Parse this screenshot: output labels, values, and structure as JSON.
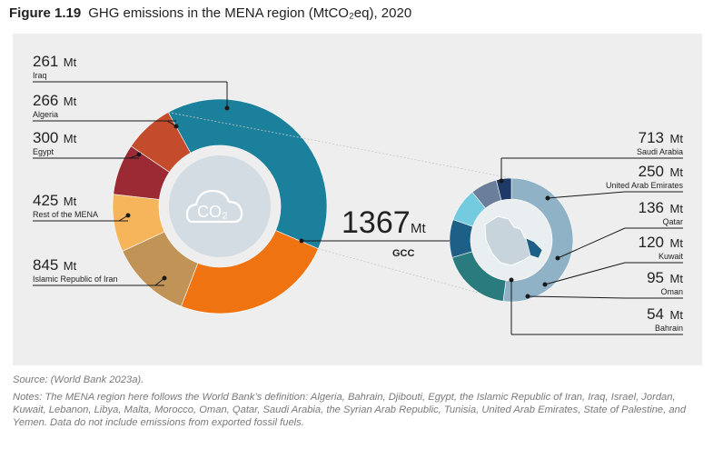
{
  "figure": {
    "number": "Figure 1.19",
    "title": "GHG emissions in the MENA region (MtCO₂eq), 2020"
  },
  "chart_data": {
    "type": "pie",
    "title": "GHG emissions in the MENA region (MtCO₂eq), 2020",
    "unit": "Mt",
    "center_label": "CO₂",
    "main_donut": {
      "slices": [
        {
          "name": "GCC",
          "value": 1367,
          "color": "#1b809c"
        },
        {
          "name": "Islamic Republic of Iran",
          "value": 845,
          "color": "#ef7411"
        },
        {
          "name": "Rest of the MENA",
          "value": 425,
          "color": "#c19357"
        },
        {
          "name": "Egypt",
          "value": 300,
          "color": "#f7b55b"
        },
        {
          "name": "Algeria",
          "value": 266,
          "color": "#9b2a35"
        },
        {
          "name": "Iraq",
          "value": 261,
          "color": "#c44b2b"
        }
      ]
    },
    "gcc_total": {
      "value": 1367,
      "unit": "Mt",
      "label": "GCC"
    },
    "gcc_donut": {
      "slices": [
        {
          "name": "Saudi Arabia",
          "value": 713,
          "color": "#8fb2c7"
        },
        {
          "name": "United Arab Emirates",
          "value": 250,
          "color": "#2a7b7e"
        },
        {
          "name": "Qatar",
          "value": 136,
          "color": "#1d5f86"
        },
        {
          "name": "Kuwait",
          "value": 120,
          "color": "#74cbe0"
        },
        {
          "name": "Oman",
          "value": 95,
          "color": "#6b7e9a"
        },
        {
          "name": "Bahrain",
          "value": 54,
          "color": "#1e3a66"
        }
      ]
    }
  },
  "footer": {
    "source": "Source: (World Bank 2023a).",
    "notes": "Notes: The MENA region here follows the World Bank’s definition: Algeria, Bahrain, Djibouti, Egypt, the Islamic Republic of Iran, Iraq, Israel, Jordan, Kuwait, Lebanon, Libya, Malta, Morocco, Oman, Qatar, Saudi Arabia, the Syrian Arab Republic, Tunisia, United Arab Emirates, State of Palestine, and Yemen. Data do not include emissions from exported fossil fuels."
  },
  "colors": {
    "panel_bg": "#eeeeee",
    "center_circle": "#d3dce2",
    "center_icon": "#b7c4cc",
    "label_line": "#1a1a1a"
  }
}
